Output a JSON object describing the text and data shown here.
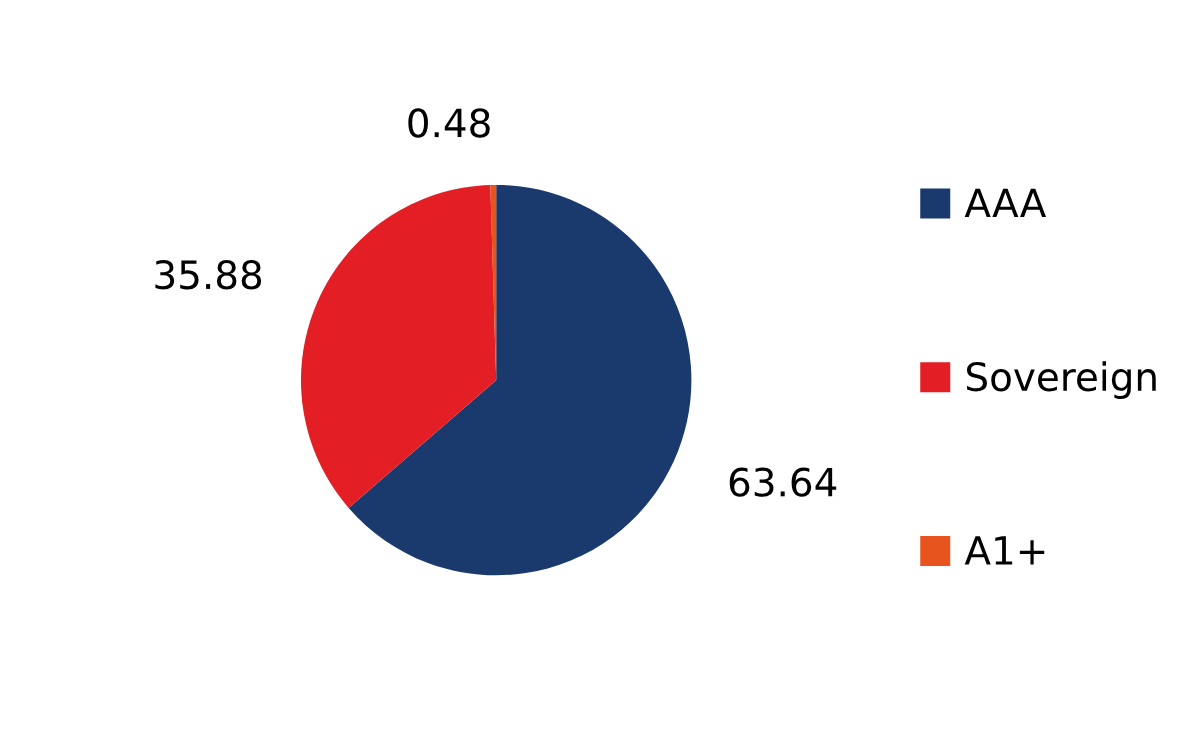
{
  "chart_data": {
    "type": "pie",
    "categories": [
      "AAA",
      "Sovereign",
      "A1+"
    ],
    "values": [
      63.64,
      35.88,
      0.48
    ],
    "colors": [
      "#1a3a6e",
      "#e31e24",
      "#e8541e"
    ],
    "data_labels": true,
    "legend": "right"
  }
}
